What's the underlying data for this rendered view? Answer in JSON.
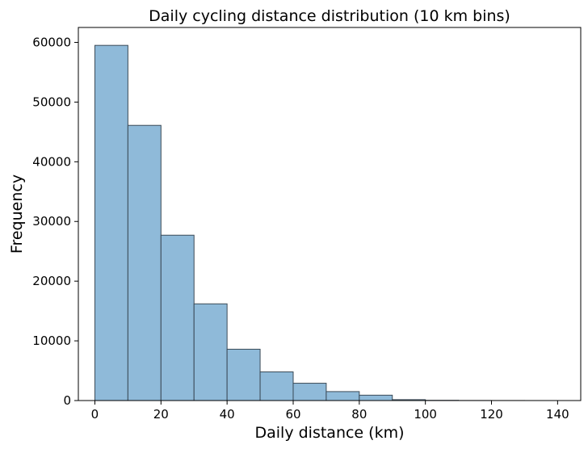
{
  "chart_data": {
    "type": "bar",
    "title": "Daily cycling distance distribution (10 km bins)",
    "xlabel": "Daily distance (km)",
    "ylabel": "Frequency",
    "bin_width": 10,
    "bins": [
      {
        "start": 0,
        "end": 10,
        "count": 59500
      },
      {
        "start": 10,
        "end": 20,
        "count": 46100
      },
      {
        "start": 20,
        "end": 30,
        "count": 27700
      },
      {
        "start": 30,
        "end": 40,
        "count": 16200
      },
      {
        "start": 40,
        "end": 50,
        "count": 8600
      },
      {
        "start": 50,
        "end": 60,
        "count": 4800
      },
      {
        "start": 60,
        "end": 70,
        "count": 2900
      },
      {
        "start": 70,
        "end": 80,
        "count": 1500
      },
      {
        "start": 80,
        "end": 90,
        "count": 900
      },
      {
        "start": 90,
        "end": 100,
        "count": 150
      },
      {
        "start": 100,
        "end": 110,
        "count": 40
      },
      {
        "start": 110,
        "end": 120,
        "count": 15
      },
      {
        "start": 120,
        "end": 130,
        "count": 8
      },
      {
        "start": 130,
        "end": 140,
        "count": 3
      }
    ],
    "xlim": [
      -5,
      147
    ],
    "ylim": [
      0,
      62500
    ],
    "x_ticks": [
      0,
      20,
      40,
      60,
      80,
      100,
      120,
      140
    ],
    "y_ticks": [
      0,
      10000,
      20000,
      30000,
      40000,
      50000,
      60000
    ],
    "x_tick_labels": [
      "0",
      "20",
      "40",
      "60",
      "80",
      "100",
      "120",
      "140"
    ],
    "y_tick_labels": [
      "0",
      "10000",
      "20000",
      "30000",
      "40000",
      "50000",
      "60000"
    ],
    "grid": false,
    "legend": "none",
    "colors": {
      "bar_fill": "#8fbad9",
      "bar_edge": "#3b4a57",
      "axis": "#000000",
      "background": "#ffffff"
    }
  }
}
